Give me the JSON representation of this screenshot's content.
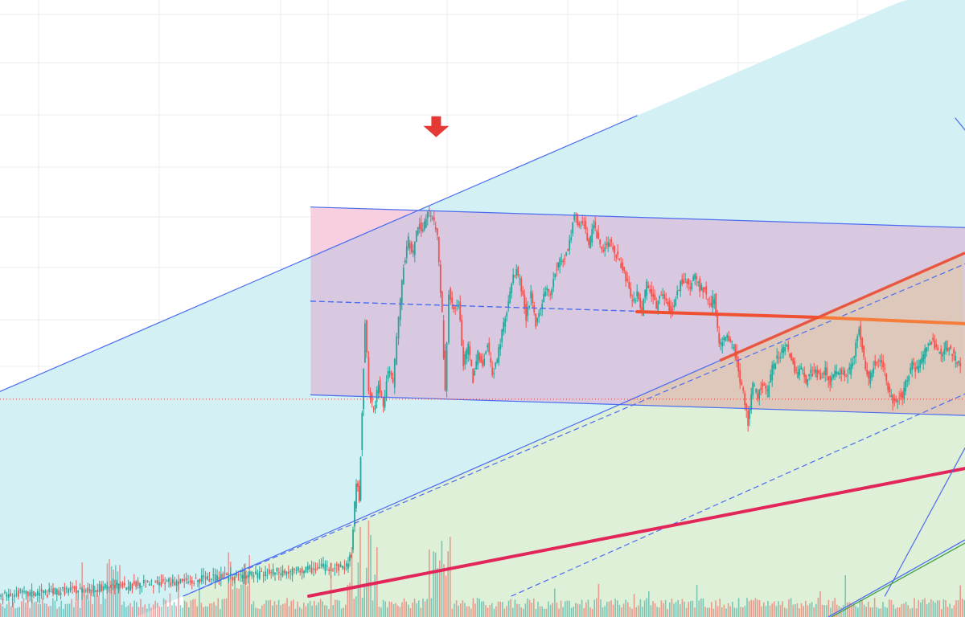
{
  "chart_data": {
    "type": "candlestick",
    "title": "",
    "xlabel": "",
    "ylabel": "",
    "x_range": [
      0,
      100
    ],
    "y_range": [
      0,
      100
    ],
    "grid": true,
    "colors": {
      "background": "#ffffff",
      "grid": "#e9ecef",
      "up": "#26a69a",
      "down": "#ef5350",
      "channel_blue": "#4a6cf0",
      "wide_channel_fill": "#d3f1f4",
      "lower_channel_fill": "#dff0d8",
      "rectangle_fill": "#d8c6df",
      "rectangle_left_fill": "#f7cfe0",
      "overlap_fill": "#ddc8bb",
      "pink_trend": "#e2265a",
      "red_trend": "#f05032",
      "orange_trend": "#f57c3a",
      "price_line": "#e53935",
      "arrow": "#e53935"
    },
    "price_line_value": 41.2,
    "marker": {
      "type": "arrow-down",
      "x": 45.2,
      "y": 96.0
    },
    "drawings": [
      {
        "name": "wide-channel-upper",
        "type": "line",
        "points": [
          [
            0,
            42.8
          ],
          [
            66,
            100.5
          ]
        ],
        "style": "solid"
      },
      {
        "name": "wide-channel-lower",
        "type": "line",
        "points": [
          [
            19,
            0
          ],
          [
            100,
            71.8
          ]
        ],
        "style": "solid"
      },
      {
        "name": "wide-channel-mid",
        "type": "line",
        "points": [
          [
            19,
            0
          ],
          [
            100,
            69.5
          ]
        ],
        "style": "dashed"
      },
      {
        "name": "lower-channel-mid",
        "type": "line",
        "points": [
          [
            53,
            0
          ],
          [
            100,
            42.3
          ]
        ],
        "style": "dashed"
      },
      {
        "name": "rectangle-channel-top",
        "type": "line",
        "points": [
          [
            32.2,
            81.4
          ],
          [
            100,
            77.1
          ]
        ],
        "style": "solid"
      },
      {
        "name": "rectangle-channel-bottom",
        "type": "line",
        "points": [
          [
            32.2,
            42.1
          ],
          [
            100,
            37.8
          ]
        ],
        "style": "solid"
      },
      {
        "name": "rectangle-channel-mid",
        "type": "line",
        "points": [
          [
            32.2,
            61.7
          ],
          [
            66,
            59.6
          ]
        ],
        "style": "dashed"
      },
      {
        "name": "pink-trendline",
        "type": "line",
        "points": [
          [
            32,
            0
          ],
          [
            100,
            26.7
          ]
        ],
        "style": "solid"
      },
      {
        "name": "red-trendline",
        "type": "line",
        "points": [
          [
            66,
            59.5
          ],
          [
            85,
            58.3
          ]
        ],
        "style": "solid"
      },
      {
        "name": "orange-trendline",
        "type": "line",
        "points": [
          [
            85,
            58.3
          ],
          [
            100,
            57.0
          ]
        ],
        "style": "solid"
      },
      {
        "name": "steep-line-a",
        "type": "line",
        "points": [
          [
            91.7,
            0
          ],
          [
            100,
            31.0
          ]
        ],
        "style": "solid"
      },
      {
        "name": "steep-line-b",
        "type": "line",
        "points": [
          [
            99,
            100
          ],
          [
            100,
            97.5
          ]
        ],
        "style": "solid"
      }
    ],
    "price_series": [
      [
        0,
        0
      ],
      [
        1,
        0
      ],
      [
        2,
        0.5
      ],
      [
        3,
        0.4
      ],
      [
        4,
        0.8
      ],
      [
        5,
        0.7
      ],
      [
        6,
        1.0
      ],
      [
        7,
        1.3
      ],
      [
        8,
        1.2
      ],
      [
        9,
        1.6
      ],
      [
        10,
        1.5
      ],
      [
        11,
        1.8
      ],
      [
        12,
        2.0
      ],
      [
        13,
        1.9
      ],
      [
        14,
        2.3
      ],
      [
        15,
        2.5
      ],
      [
        16,
        2.4
      ],
      [
        17,
        2.8
      ],
      [
        18,
        3.0
      ],
      [
        19,
        3.2
      ],
      [
        20,
        3.0
      ],
      [
        21,
        3.5
      ],
      [
        22,
        3.6
      ],
      [
        23,
        3.9
      ],
      [
        24,
        4.0
      ],
      [
        25,
        4.3
      ],
      [
        26,
        4.5
      ],
      [
        27,
        4.4
      ],
      [
        28,
        4.9
      ],
      [
        29,
        5.1
      ],
      [
        30,
        5.0
      ],
      [
        31,
        5.4
      ],
      [
        32,
        5.6
      ],
      [
        33,
        5.9
      ],
      [
        34,
        6.1
      ],
      [
        35,
        6.0
      ],
      [
        36,
        6.4
      ],
      [
        36.5,
        9.0
      ],
      [
        37,
        24.0
      ],
      [
        37.3,
        20.5
      ],
      [
        37.6,
        39.0
      ],
      [
        37.9,
        57.5
      ],
      [
        38.3,
        43.0
      ],
      [
        38.8,
        38.5
      ],
      [
        39.3,
        45.0
      ],
      [
        39.8,
        39.5
      ],
      [
        40.3,
        47.5
      ],
      [
        40.8,
        44.5
      ],
      [
        41.4,
        58.5
      ],
      [
        41.9,
        69.0
      ],
      [
        42.4,
        74.5
      ],
      [
        42.9,
        71.5
      ],
      [
        43.4,
        78.0
      ],
      [
        43.9,
        76.0
      ],
      [
        44.4,
        81.0
      ],
      [
        44.9,
        79.0
      ],
      [
        45.4,
        75.5
      ],
      [
        45.9,
        58.5
      ],
      [
        46.2,
        42.5
      ],
      [
        46.6,
        63.5
      ],
      [
        47.1,
        59.5
      ],
      [
        47.6,
        61.5
      ],
      [
        48.1,
        48.5
      ],
      [
        48.6,
        52.5
      ],
      [
        49.1,
        45.5
      ],
      [
        49.6,
        50.5
      ],
      [
        50.1,
        48.5
      ],
      [
        50.6,
        52.5
      ],
      [
        51.1,
        46.5
      ],
      [
        51.6,
        49.5
      ],
      [
        52.1,
        55.5
      ],
      [
        52.6,
        59.5
      ],
      [
        53.1,
        65.5
      ],
      [
        53.6,
        68.5
      ],
      [
        54.1,
        64.5
      ],
      [
        54.6,
        58.5
      ],
      [
        55.1,
        63.0
      ],
      [
        55.6,
        56.5
      ],
      [
        56.1,
        60.5
      ],
      [
        56.6,
        64.5
      ],
      [
        57.1,
        63.0
      ],
      [
        57.6,
        68.0
      ],
      [
        58.1,
        70.0
      ],
      [
        58.6,
        71.0
      ],
      [
        59.1,
        74.0
      ],
      [
        59.6,
        80.0
      ],
      [
        60.1,
        77.5
      ],
      [
        60.6,
        78.5
      ],
      [
        61.1,
        73.5
      ],
      [
        61.6,
        77.5
      ],
      [
        62.1,
        74.0
      ],
      [
        62.6,
        72.5
      ],
      [
        63.1,
        74.5
      ],
      [
        63.6,
        72.5
      ],
      [
        64.1,
        71.0
      ],
      [
        64.6,
        68.0
      ],
      [
        65.1,
        65.5
      ],
      [
        65.6,
        61.0
      ],
      [
        66.1,
        63.5
      ],
      [
        66.6,
        59.5
      ],
      [
        67.1,
        65.5
      ],
      [
        67.6,
        63.0
      ],
      [
        68.1,
        60.5
      ],
      [
        68.6,
        63.5
      ],
      [
        69.1,
        61.5
      ],
      [
        69.6,
        59.5
      ],
      [
        70.1,
        62.5
      ],
      [
        70.6,
        65.5
      ],
      [
        71.1,
        66.5
      ],
      [
        71.6,
        65.0
      ],
      [
        72.1,
        67.5
      ],
      [
        72.6,
        64.5
      ],
      [
        73.1,
        64.0
      ],
      [
        73.6,
        60.5
      ],
      [
        74.1,
        62.5
      ],
      [
        74.6,
        52.5
      ],
      [
        75.1,
        53.5
      ],
      [
        75.6,
        54.0
      ],
      [
        76.1,
        52.0
      ],
      [
        76.6,
        47.0
      ],
      [
        77.1,
        42.5
      ],
      [
        77.6,
        36.5
      ],
      [
        78.1,
        44.0
      ],
      [
        78.6,
        42.0
      ],
      [
        79.1,
        44.5
      ],
      [
        79.6,
        42.5
      ],
      [
        80.1,
        47.5
      ],
      [
        80.6,
        49.5
      ],
      [
        81.1,
        51.5
      ],
      [
        81.6,
        52.5
      ],
      [
        82.1,
        49.5
      ],
      [
        82.6,
        46.5
      ],
      [
        83.1,
        47.5
      ],
      [
        83.6,
        44.5
      ],
      [
        84.1,
        46.5
      ],
      [
        84.6,
        47.0
      ],
      [
        85.1,
        45.5
      ],
      [
        85.6,
        47.5
      ],
      [
        86.1,
        44.5
      ],
      [
        86.6,
        46.5
      ],
      [
        87.1,
        47.5
      ],
      [
        87.6,
        46.0
      ],
      [
        88.1,
        47.0
      ],
      [
        88.6,
        51.0
      ],
      [
        89.1,
        56.0
      ],
      [
        89.6,
        49.5
      ],
      [
        90.1,
        45.0
      ],
      [
        90.6,
        48.5
      ],
      [
        91.1,
        49.5
      ],
      [
        91.6,
        48.5
      ],
      [
        92.1,
        43.5
      ],
      [
        92.6,
        40.5
      ],
      [
        93.1,
        41.5
      ],
      [
        93.6,
        42.0
      ],
      [
        94.1,
        45.5
      ],
      [
        94.6,
        48.5
      ],
      [
        95.1,
        47.5
      ],
      [
        95.6,
        49.5
      ],
      [
        96.1,
        52.5
      ],
      [
        96.6,
        53.5
      ],
      [
        97.1,
        51.5
      ],
      [
        97.6,
        51.0
      ],
      [
        98.1,
        52.5
      ],
      [
        98.6,
        51.5
      ],
      [
        99.1,
        49.5
      ],
      [
        99.6,
        48.0
      ]
    ]
  }
}
